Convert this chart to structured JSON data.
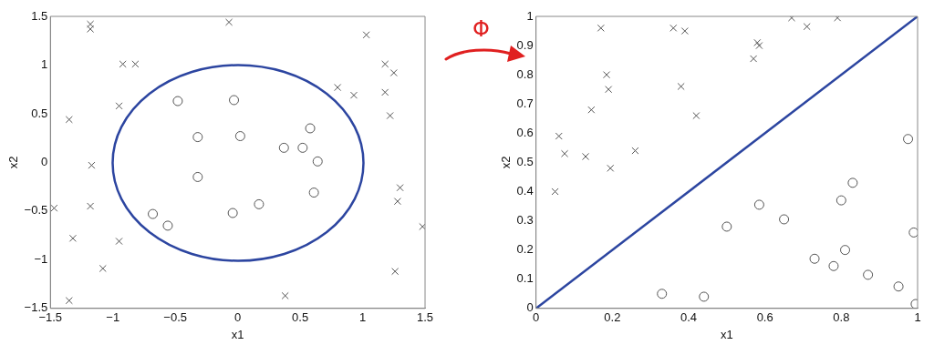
{
  "chart_data": [
    {
      "type": "scatter",
      "xlabel": "x1",
      "ylabel": "x2",
      "xlim": [
        -1.5,
        1.5
      ],
      "ylim": [
        -1.5,
        1.5
      ],
      "xticks": [
        -1.5,
        -1,
        -0.5,
        0,
        0.5,
        1,
        1.5
      ],
      "yticks": [
        -1.5,
        -1,
        -0.5,
        0,
        0.5,
        1,
        1.5
      ],
      "grid": false,
      "legend": false,
      "annotations": [
        "Φ"
      ],
      "series": [
        {
          "type": "scatter",
          "marker": "cross",
          "color": "#555555",
          "x": [
            -1.18,
            -1.18,
            -0.07,
            -0.92,
            -0.82,
            -0.95,
            -1.35,
            -1.17,
            -1.47,
            -1.18,
            -1.32,
            -0.95,
            -1.08,
            -1.35,
            1.03,
            1.18,
            1.25,
            0.8,
            0.93,
            1.18,
            1.22,
            1.3,
            1.28,
            1.48,
            1.26,
            0.38
          ],
          "values": [
            1.42,
            1.37,
            1.44,
            1.01,
            1.01,
            0.58,
            0.44,
            -0.03,
            -0.47,
            -0.45,
            -0.78,
            -0.81,
            -1.09,
            -1.42,
            1.31,
            1.01,
            0.92,
            0.77,
            0.69,
            0.72,
            0.48,
            -0.26,
            -0.4,
            -0.66,
            -1.12,
            -1.37
          ]
        },
        {
          "type": "scatter",
          "marker": "circle",
          "color": "#555555",
          "x": [
            -0.48,
            -0.32,
            -0.32,
            -0.68,
            -0.56,
            -0.03,
            0.02,
            -0.04,
            0.17,
            0.37,
            0.52,
            0.58,
            0.64,
            0.61
          ],
          "values": [
            0.63,
            0.26,
            -0.15,
            -0.53,
            -0.65,
            0.64,
            0.27,
            -0.52,
            -0.43,
            0.15,
            0.15,
            0.35,
            0.01,
            -0.31
          ]
        }
      ]
    },
    {
      "type": "scatter",
      "xlabel": "x1",
      "ylabel": "x2",
      "xlim": [
        0,
        1
      ],
      "ylim": [
        0,
        1
      ],
      "xticks": [
        0,
        0.2,
        0.4,
        0.6,
        0.8,
        1
      ],
      "yticks": [
        0,
        0.1,
        0.2,
        0.3,
        0.4,
        0.5,
        0.6,
        0.7,
        0.8,
        0.9,
        1
      ],
      "grid": false,
      "legend": false,
      "series": [
        {
          "type": "scatter",
          "marker": "cross",
          "color": "#555555",
          "x": [
            0.05,
            0.06,
            0.075,
            0.13,
            0.145,
            0.17,
            0.185,
            0.19,
            0.195,
            0.26,
            0.36,
            0.38,
            0.39,
            0.42,
            0.57,
            0.58,
            0.585,
            0.67,
            0.71,
            0.79
          ],
          "values": [
            0.4,
            0.59,
            0.53,
            0.52,
            0.68,
            0.96,
            0.8,
            0.75,
            0.48,
            0.54,
            0.96,
            0.76,
            0.95,
            0.66,
            0.855,
            0.91,
            0.9,
            0.995,
            0.965,
            0.995
          ]
        },
        {
          "type": "scatter",
          "marker": "circle",
          "color": "#555555",
          "x": [
            0.33,
            0.44,
            0.5,
            0.585,
            0.65,
            0.73,
            0.78,
            0.8,
            0.81,
            0.83,
            0.87,
            0.95,
            0.975,
            0.99,
            0.995
          ],
          "values": [
            0.05,
            0.04,
            0.28,
            0.355,
            0.305,
            0.17,
            0.145,
            0.37,
            0.2,
            0.43,
            0.115,
            0.075,
            0.58,
            0.26,
            0.015
          ]
        },
        {
          "type": "line",
          "marker": "none",
          "color": "#2c45a0",
          "x": [
            0,
            1
          ],
          "values": [
            0,
            1
          ]
        }
      ]
    }
  ]
}
